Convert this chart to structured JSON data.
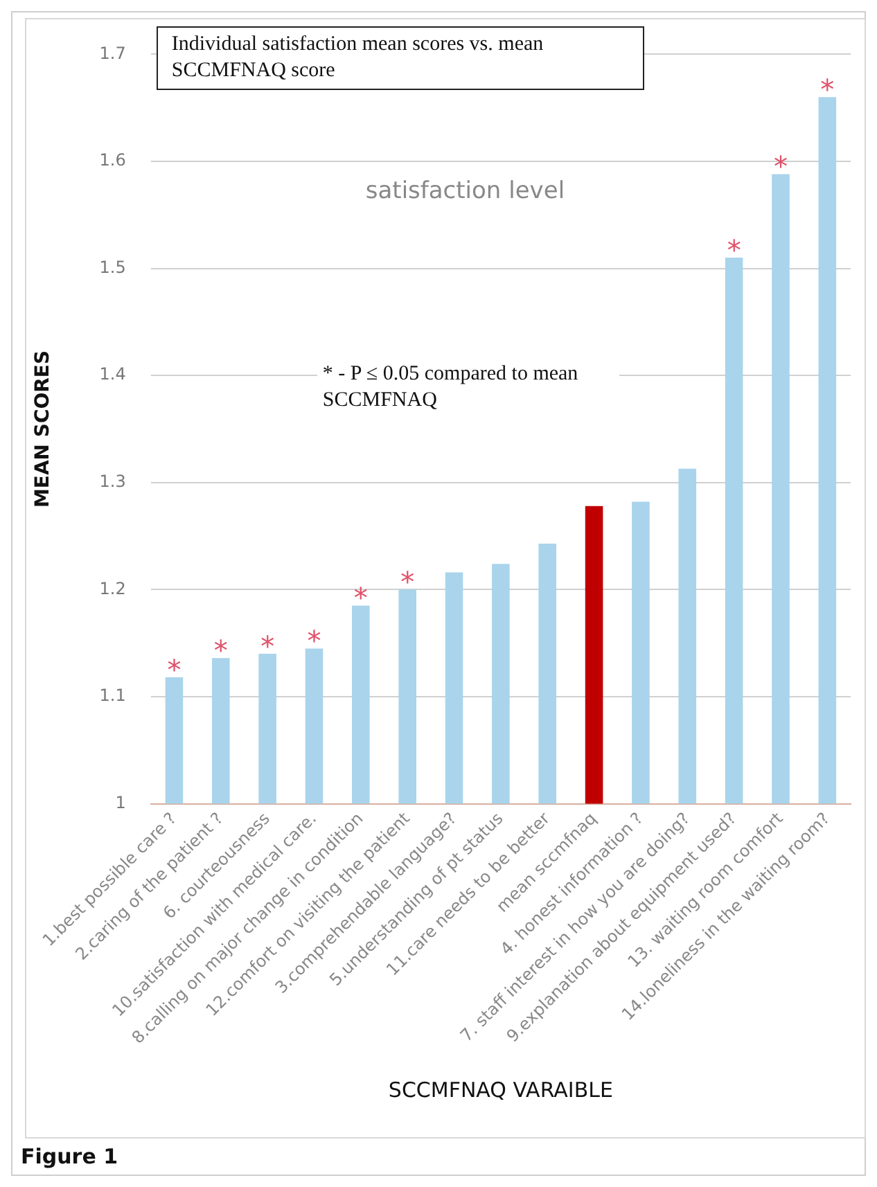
{
  "chart_data": {
    "type": "bar",
    "title": "Individual satisfaction mean scores vs. mean SCCMFNAQ score",
    "subtitle": "satisfaction level",
    "xlabel": "SCCMFNAQ VARAIBLE",
    "ylabel": "MEAN SCORES",
    "categories": [
      "1.best possible care ?",
      "2.caring of the patient ?",
      "6. courteousness",
      "10.satisfaction with medical care.",
      "8.calling on major change in condition",
      "12.comfort on visiting the patient",
      "3.comprehendable language?",
      "5.understanding of pt status",
      "11.care needs to be better",
      "mean sccmfnaq",
      "4. honest information ?",
      "7. staff interest in how you are doing?",
      "9.explanation about equipment used?",
      "13. waiting room comfort",
      "14.loneliness in the waiting room?"
    ],
    "values": [
      1.118,
      1.136,
      1.14,
      1.145,
      1.185,
      1.2,
      1.216,
      1.224,
      1.243,
      1.278,
      1.282,
      1.313,
      1.51,
      1.588,
      1.66
    ],
    "colors": [
      "#a9d4ec",
      "#a9d4ec",
      "#a9d4ec",
      "#a9d4ec",
      "#a9d4ec",
      "#a9d4ec",
      "#a9d4ec",
      "#a9d4ec",
      "#a9d4ec",
      "#c00000",
      "#a9d4ec",
      "#a9d4ec",
      "#a9d4ec",
      "#a9d4ec",
      "#a9d4ec"
    ],
    "ylim": [
      1,
      1.7
    ],
    "yticks": [
      1,
      1.1,
      1.2,
      1.3,
      1.4,
      1.5,
      1.6,
      1.7
    ],
    "grid": "y",
    "legend": false,
    "annotations": [
      {
        "text": "*",
        "x": "1.best possible care ?",
        "y": 1.118
      },
      {
        "text": "*",
        "x": "2.caring of the patient ?",
        "y": 1.136
      },
      {
        "text": "*",
        "x": "6. courteousness",
        "y": 1.14
      },
      {
        "text": "*",
        "x": "10.satisfaction with medical care.",
        "y": 1.145
      },
      {
        "text": "*",
        "x": "8.calling on major change in condition",
        "y": 1.185
      },
      {
        "text": "*",
        "x": "12.comfort on visiting the patient",
        "y": 1.2
      },
      {
        "text": "*",
        "x": "9.explanation about equipment used?",
        "y": 1.51
      },
      {
        "text": "*",
        "x": "13. waiting room comfort",
        "y": 1.588
      },
      {
        "text": "*",
        "x": "14.loneliness in the waiting room?",
        "y": 1.66
      },
      "* - P ≤ 0.05 compared to mean SCCMFNAQ",
      "Figure 1"
    ]
  }
}
